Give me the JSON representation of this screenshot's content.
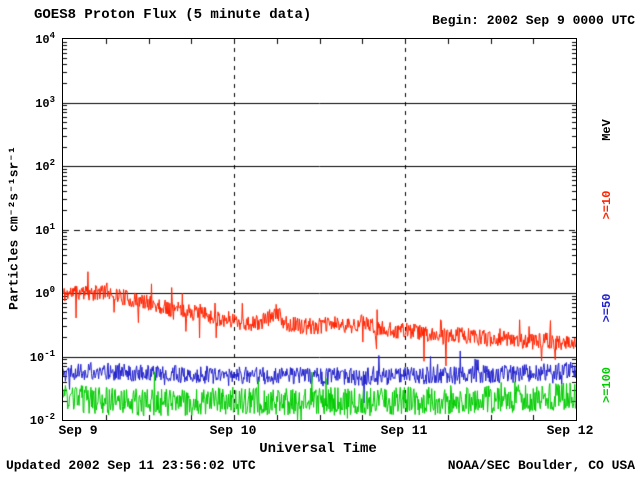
{
  "header": {
    "title": "GOES8 Proton Flux (5 minute data)",
    "begin": "Begin: 2002 Sep 9 0000 UTC"
  },
  "axes": {
    "y_title": "Particles cm⁻²s⁻¹sr⁻¹",
    "x_title": "Universal Time"
  },
  "right_axis": {
    "unit": "MeV",
    "items": [
      {
        "label": ">=10",
        "color": "#ff2200"
      },
      {
        "label": ">=50",
        "color": "#2222cc"
      },
      {
        "label": ">=100",
        "color": "#00cc00"
      }
    ]
  },
  "footer": {
    "updated": "Updated 2002 Sep 11 23:56:02 UTC",
    "credit": "NOAA/SEC Boulder, CO USA"
  },
  "chart_data": {
    "type": "line",
    "title": "GOES8 Proton Flux (5 minute data)",
    "xlabel": "Universal Time",
    "ylabel": "Particles cm⁻²s⁻¹sr⁻¹",
    "x_unit": "hours since 2002 Sep 9 0000 UTC",
    "xlim": [
      0,
      72
    ],
    "ylog": true,
    "y_exp_range": [
      4,
      -2
    ],
    "ylim": [
      0.01,
      10000
    ],
    "y_tick_exponents": [
      "4",
      "3",
      "2",
      "1",
      "0",
      "-1",
      "-2"
    ],
    "x_ticks": [
      {
        "hours": 0,
        "label": "Sep 9"
      },
      {
        "hours": 24,
        "label": "Sep 10"
      },
      {
        "hours": 48,
        "label": "Sep 11"
      },
      {
        "hours": 72,
        "label": "Sep 12"
      }
    ],
    "solid_hline_exponents": [
      3,
      2,
      0,
      -1
    ],
    "dashed_hline_exponents": [
      1
    ],
    "dashed_vlines_hours": [
      24,
      48
    ],
    "minor_xtick_hours": 6,
    "cadence_minutes": 5,
    "points_per_series": 864,
    "legend_position": "right",
    "grid": true,
    "series": [
      {
        "name": ">=10 MeV",
        "color": "#ff2200",
        "seed": 11,
        "noise_decades": 0.13,
        "spike": {
          "p": 0.04,
          "decades": 0.45
        },
        "anchors": [
          [
            0,
            0.95
          ],
          [
            2,
            1.05
          ],
          [
            4,
            0.95
          ],
          [
            6,
            1.1
          ],
          [
            8,
            0.9
          ],
          [
            10,
            0.75
          ],
          [
            12,
            0.7
          ],
          [
            14,
            0.6
          ],
          [
            16,
            0.55
          ],
          [
            18,
            0.5
          ],
          [
            20,
            0.45
          ],
          [
            22,
            0.4
          ],
          [
            24,
            0.38
          ],
          [
            26,
            0.32
          ],
          [
            28,
            0.35
          ],
          [
            30,
            0.5
          ],
          [
            31,
            0.35
          ],
          [
            33,
            0.3
          ],
          [
            36,
            0.3
          ],
          [
            38,
            0.33
          ],
          [
            40,
            0.3
          ],
          [
            42,
            0.35
          ],
          [
            44,
            0.28
          ],
          [
            46,
            0.26
          ],
          [
            48,
            0.26
          ],
          [
            50,
            0.24
          ],
          [
            52,
            0.22
          ],
          [
            54,
            0.2
          ],
          [
            56,
            0.22
          ],
          [
            58,
            0.2
          ],
          [
            60,
            0.19
          ],
          [
            62,
            0.2
          ],
          [
            64,
            0.18
          ],
          [
            66,
            0.17
          ],
          [
            68,
            0.18
          ],
          [
            70,
            0.16
          ],
          [
            72,
            0.17
          ]
        ]
      },
      {
        "name": ">=50 MeV",
        "color": "#2222cc",
        "seed": 22,
        "noise_decades": 0.14,
        "spike": {
          "p": 0.03,
          "decades": 0.3
        },
        "anchors": [
          [
            0,
            0.06
          ],
          [
            6,
            0.058
          ],
          [
            12,
            0.055
          ],
          [
            18,
            0.052
          ],
          [
            24,
            0.05
          ],
          [
            30,
            0.05
          ],
          [
            36,
            0.05
          ],
          [
            42,
            0.048
          ],
          [
            48,
            0.05
          ],
          [
            54,
            0.05
          ],
          [
            60,
            0.052
          ],
          [
            66,
            0.055
          ],
          [
            72,
            0.06
          ]
        ]
      },
      {
        "name": ">=100 MeV",
        "color": "#00cc00",
        "seed": 33,
        "noise_decades": 0.22,
        "spike": {
          "p": 0.03,
          "decades": 0.3
        },
        "anchors": [
          [
            0,
            0.022
          ],
          [
            6,
            0.02
          ],
          [
            12,
            0.019
          ],
          [
            18,
            0.019
          ],
          [
            24,
            0.02
          ],
          [
            30,
            0.019
          ],
          [
            36,
            0.02
          ],
          [
            42,
            0.019
          ],
          [
            48,
            0.02
          ],
          [
            54,
            0.02
          ],
          [
            60,
            0.021
          ],
          [
            66,
            0.022
          ],
          [
            72,
            0.024
          ]
        ]
      }
    ]
  }
}
